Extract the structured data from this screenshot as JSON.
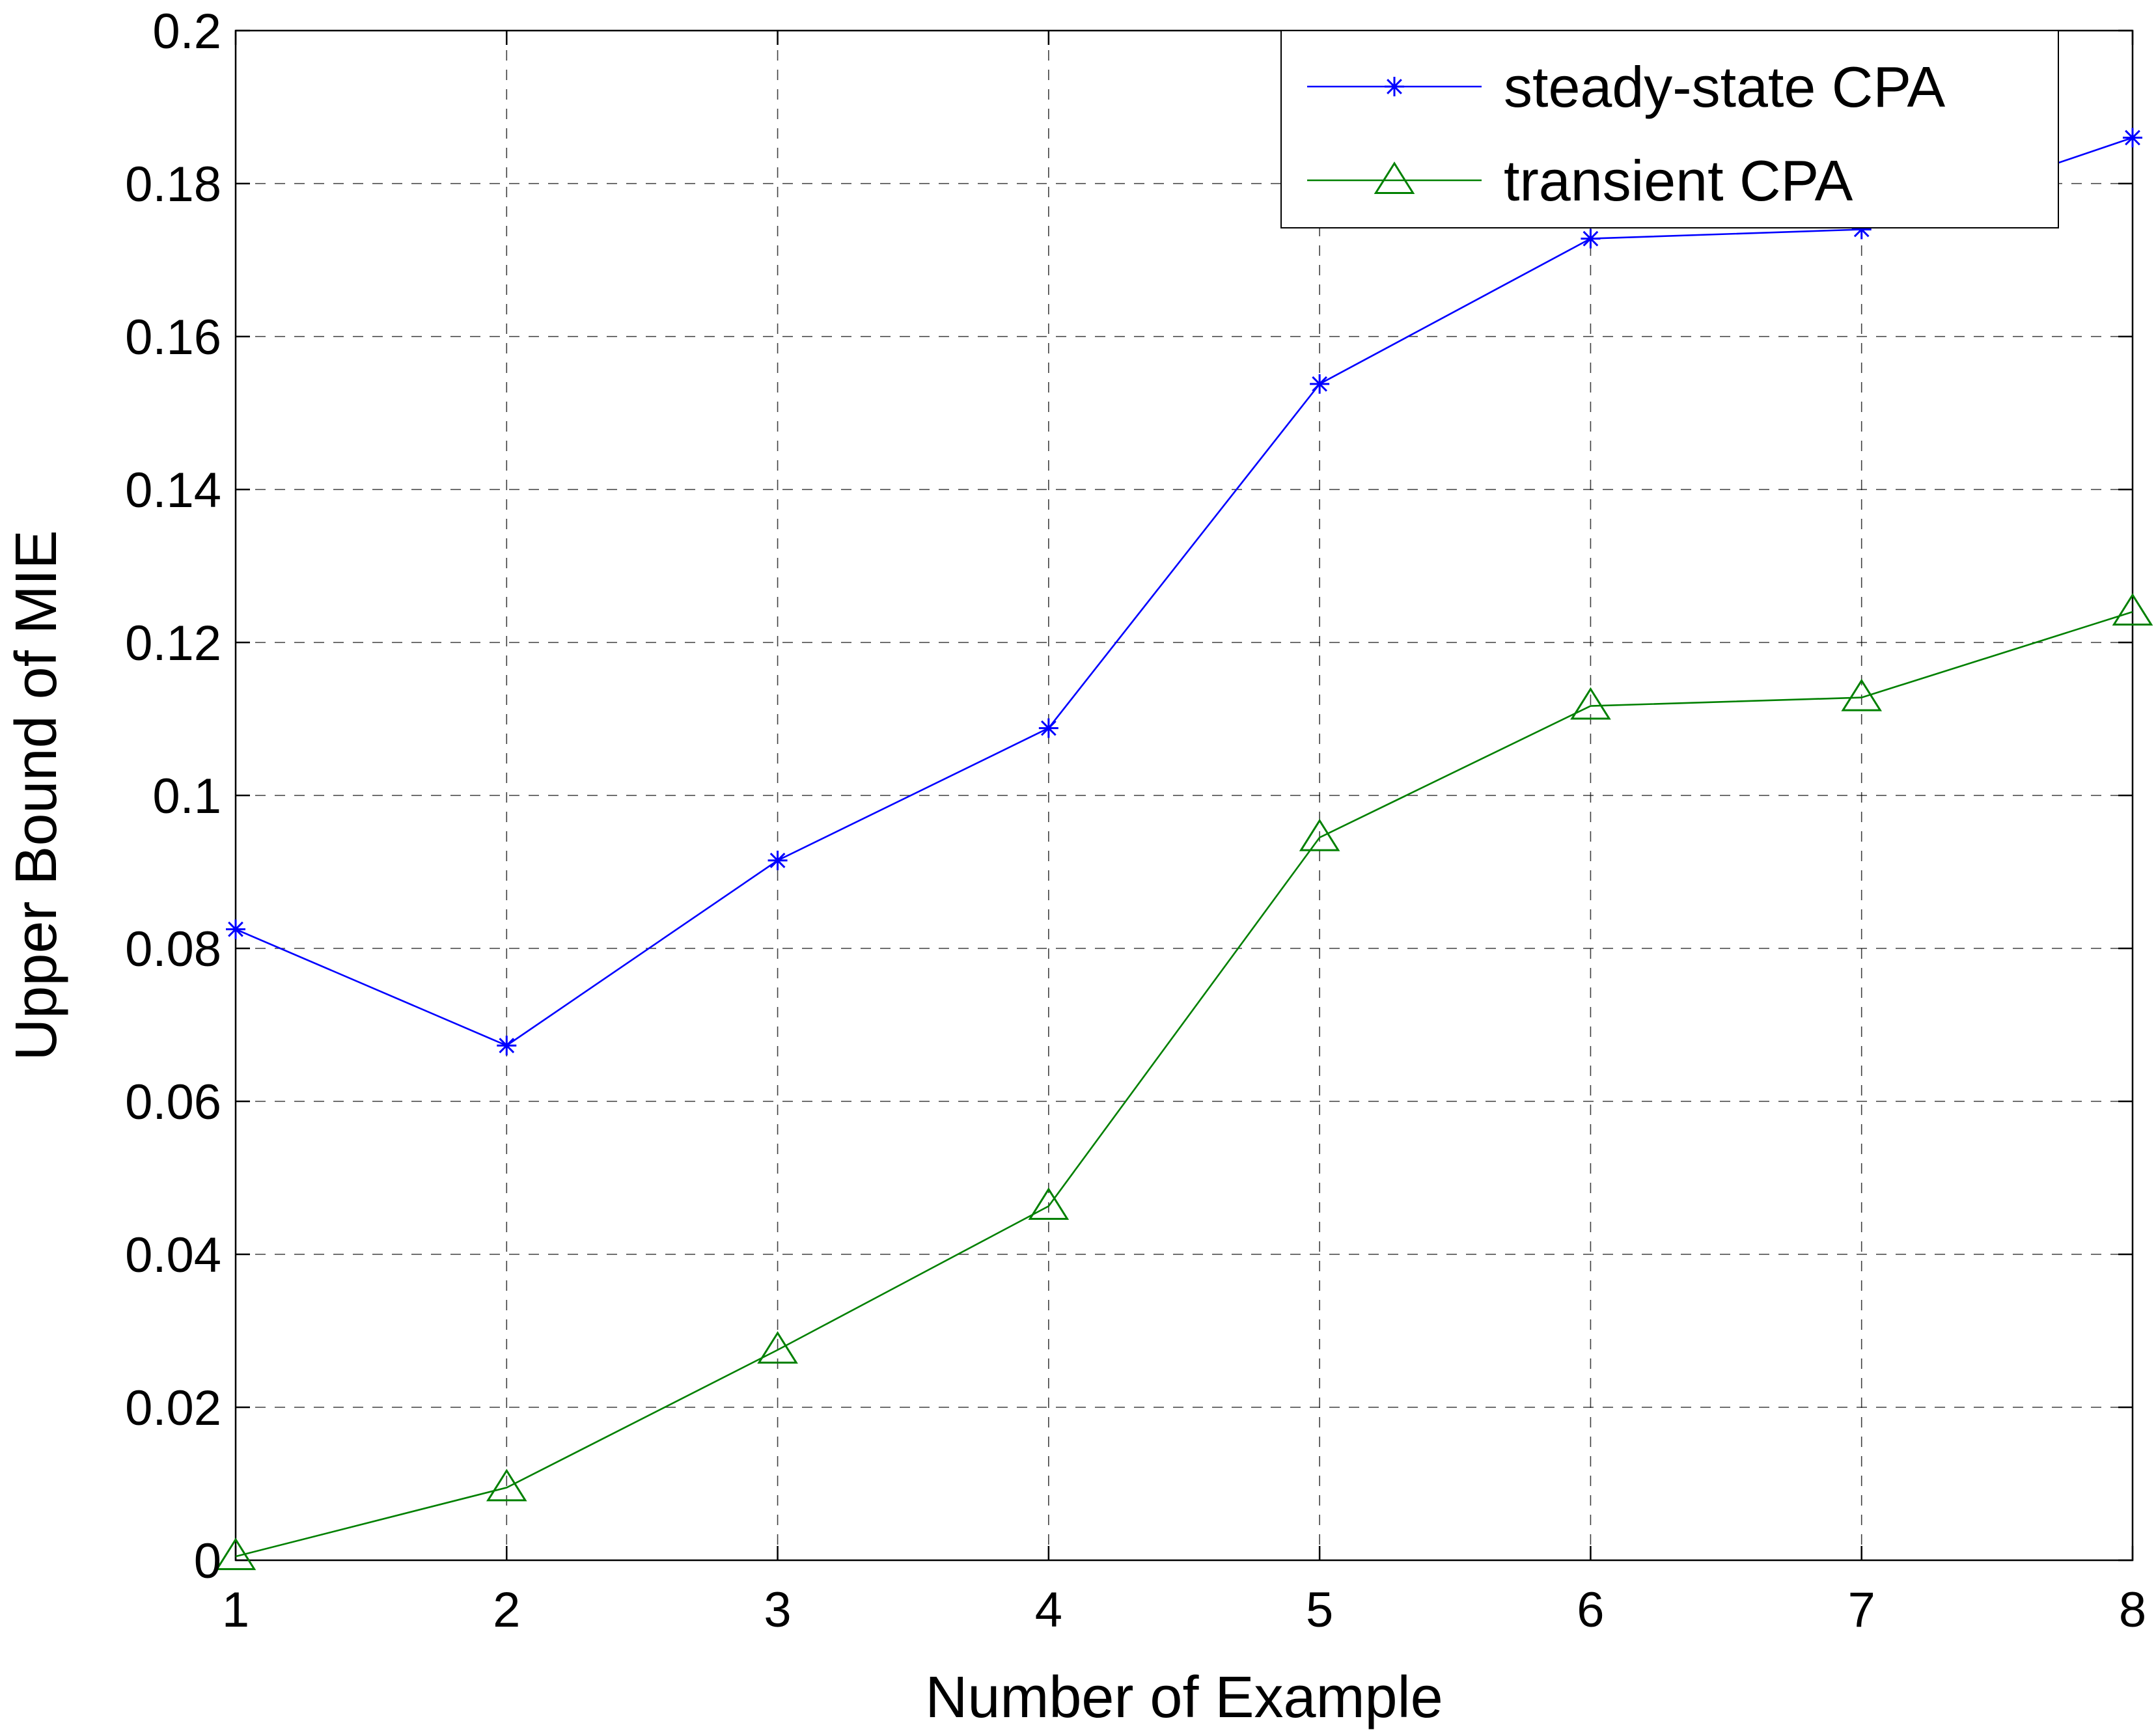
{
  "chart_data": {
    "type": "line",
    "title": "",
    "xlabel": "Number of Example",
    "ylabel": "Upper Bound of MIE",
    "xlim": [
      1,
      8
    ],
    "ylim": [
      0,
      0.2
    ],
    "x_ticks": [
      1,
      2,
      3,
      4,
      5,
      6,
      7,
      8
    ],
    "x_tick_labels": [
      "1",
      "2",
      "3",
      "4",
      "5",
      "6",
      "7",
      "8"
    ],
    "y_ticks": [
      0,
      0.02,
      0.04,
      0.06,
      0.08,
      0.1,
      0.12,
      0.14,
      0.16,
      0.18,
      0.2
    ],
    "y_tick_labels": [
      "0",
      "0.02",
      "0.04",
      "0.06",
      "0.08",
      "0.1",
      "0.12",
      "0.14",
      "0.16",
      "0.18",
      "0.2"
    ],
    "grid": true,
    "legend_position": "top-right",
    "x": [
      1,
      2,
      3,
      4,
      5,
      6,
      7,
      8
    ],
    "series": [
      {
        "name": "steady-state CPA",
        "values": [
          0.0825,
          0.0673,
          0.0915,
          0.1088,
          0.1538,
          0.1728,
          0.174,
          0.186
        ],
        "color": "#0000ff",
        "marker": "asterisk"
      },
      {
        "name": "transient CPA",
        "values": [
          0.0005,
          0.0095,
          0.0275,
          0.0463,
          0.0945,
          0.1117,
          0.1128,
          0.124
        ],
        "color": "#008000",
        "marker": "triangle"
      }
    ]
  }
}
